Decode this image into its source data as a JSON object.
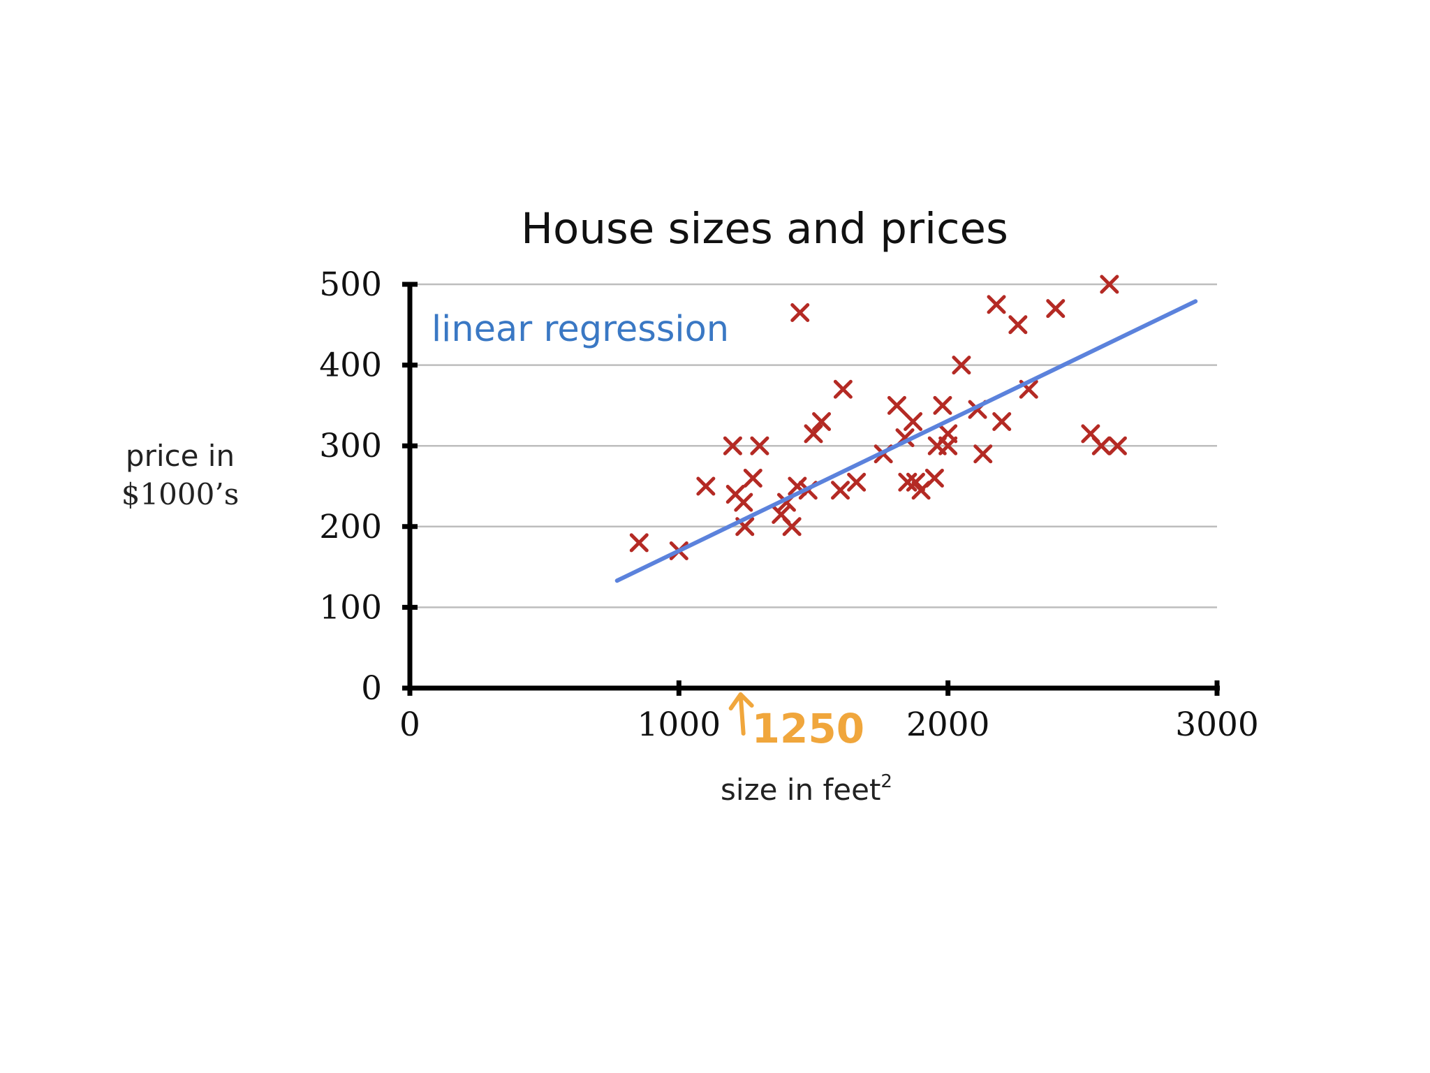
{
  "chart_data": {
    "type": "scatter",
    "title": "House sizes and prices",
    "xlabel": "size in feet",
    "xlabel_sup": "2",
    "ylabel_line1": "price in",
    "ylabel_line2": "$1000’s",
    "xlim": [
      0,
      3000
    ],
    "ylim": [
      0,
      500
    ],
    "xticks": [
      0,
      1000,
      2000,
      3000
    ],
    "xtick_labels": [
      "0",
      "1000",
      "2000",
      "3000"
    ],
    "yticks": [
      0,
      100,
      200,
      300,
      400,
      500
    ],
    "ytick_labels": [
      "0",
      "100",
      "200",
      "300",
      "400",
      "500"
    ],
    "grid": true,
    "marker_color": "#b42a24",
    "line_color": "#5b82dc",
    "series": [
      {
        "kind": "points",
        "x": [
          852,
          1000,
          1100,
          1200,
          1210,
          1240,
          1245,
          1275,
          1300,
          1380,
          1400,
          1420,
          1440,
          1450,
          1480,
          1500,
          1530,
          1600,
          1610,
          1660,
          1760,
          1810,
          1840,
          1850,
          1870,
          1880,
          1900,
          1950,
          1960,
          1980,
          2000,
          2000,
          2050,
          2110,
          2130,
          2180,
          2200,
          2260,
          2300,
          2400,
          2530,
          2570,
          2600,
          2630
        ],
        "y": [
          180,
          170,
          250,
          300,
          240,
          230,
          200,
          260,
          300,
          215,
          230,
          200,
          250,
          465,
          245,
          315,
          330,
          245,
          370,
          255,
          290,
          350,
          310,
          255,
          330,
          255,
          245,
          260,
          300,
          350,
          300,
          315,
          400,
          345,
          290,
          475,
          330,
          450,
          370,
          470,
          315,
          300,
          500,
          300
        ]
      },
      {
        "kind": "line",
        "name": "linear regression",
        "x": [
          770,
          2920
        ],
        "y": [
          133,
          479
        ]
      }
    ],
    "annotation": {
      "text": "1250",
      "x": 1250
    }
  }
}
